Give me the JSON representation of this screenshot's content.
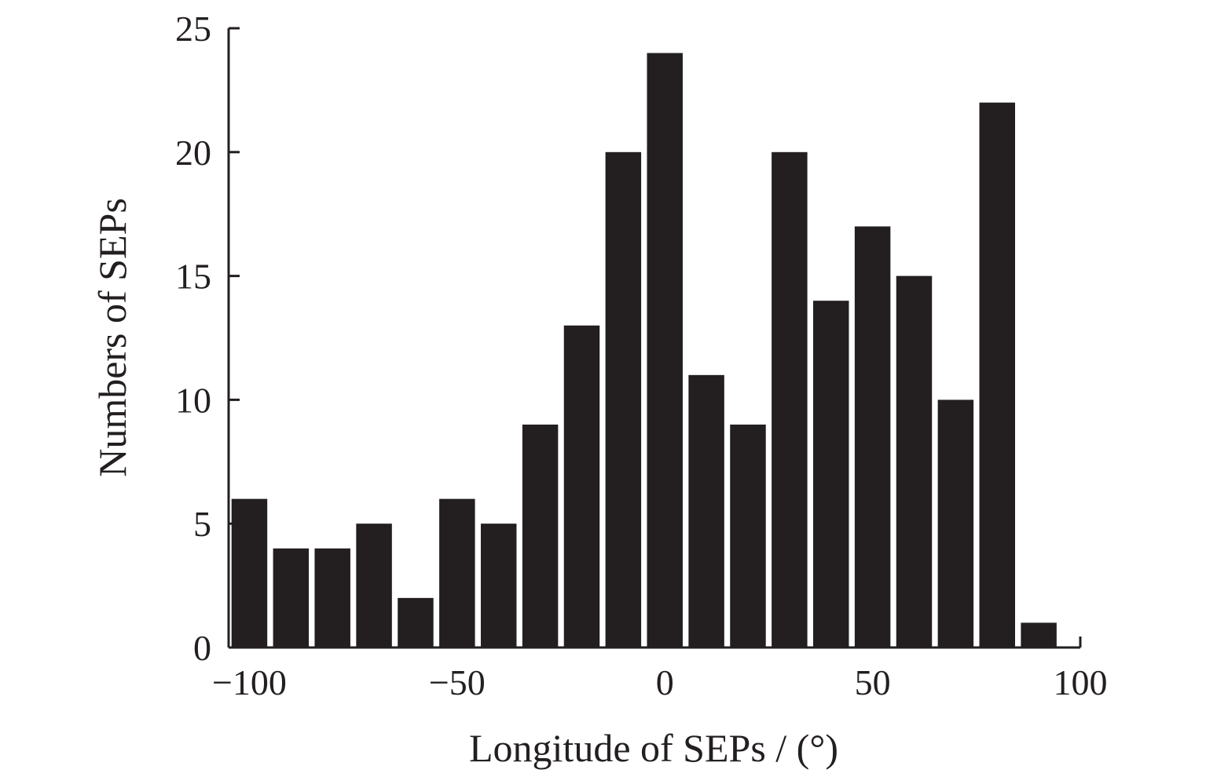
{
  "chart_data": {
    "type": "bar",
    "title": "",
    "xlabel": "Longitude of SEPs / (°)",
    "ylabel": "Numbers of SEPs",
    "x_centers": [
      -100,
      -90,
      -80,
      -70,
      -60,
      -50,
      -40,
      -30,
      -20,
      -10,
      0,
      10,
      20,
      30,
      40,
      50,
      60,
      70,
      80,
      90
    ],
    "values": [
      6,
      4,
      4,
      5,
      2,
      6,
      5,
      9,
      13,
      20,
      24,
      11,
      9,
      20,
      14,
      17,
      15,
      10,
      22,
      1
    ],
    "bin_width": 10,
    "xlim": [
      -105,
      100
    ],
    "ylim": [
      0,
      25
    ],
    "x_ticks": [
      -100,
      -50,
      0,
      50,
      100
    ],
    "x_tick_labels": [
      "−100",
      "−50",
      "0",
      "50",
      "100"
    ],
    "y_ticks": [
      0,
      5,
      10,
      15,
      20,
      25
    ],
    "y_tick_labels": [
      "0",
      "5",
      "10",
      "15",
      "20",
      "25"
    ],
    "grid": false,
    "legend": "none",
    "bar_color": "#231f20",
    "axis_color": "#231f20"
  }
}
